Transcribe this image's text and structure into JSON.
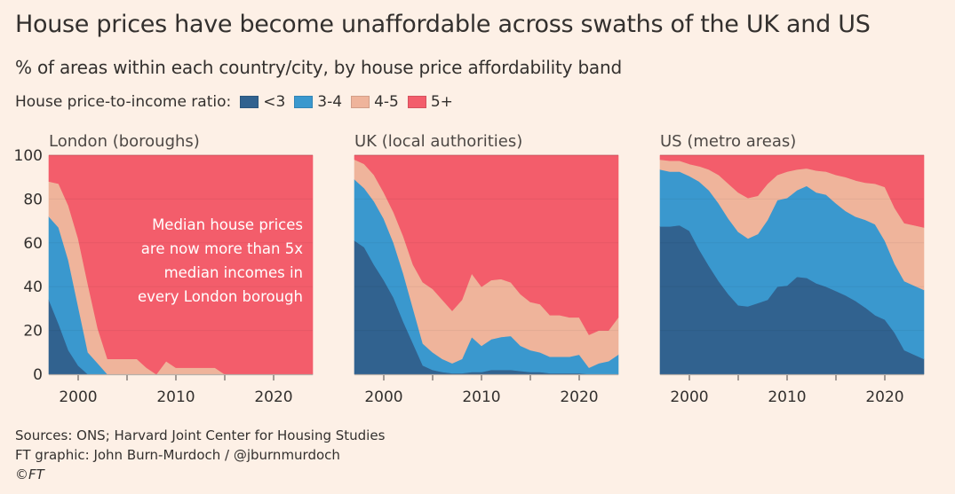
{
  "title": "House prices have become unaffordable across swaths of the UK and US",
  "subtitle": "% of areas within each country/city, by house price affordability band",
  "legend": {
    "label": "House price-to-income ratio:",
    "items": [
      {
        "label": "<3",
        "color": "#31628F"
      },
      {
        "label": "3-4",
        "color": "#3A98CE"
      },
      {
        "label": "4-5",
        "color": "#EFB49B"
      },
      {
        "label": "5+",
        "color": "#F35D6B"
      }
    ]
  },
  "footer": {
    "sources": "Sources: ONS; Harvard Joint Center for Housing Studies",
    "credit": "FT graphic: John Burn-Murdoch / @jburnmurdoch",
    "copyright": "©FT"
  },
  "chart_data": [
    {
      "type": "area",
      "stacked": true,
      "title": "London (boroughs)",
      "xlabel": "",
      "ylabel": "",
      "xlim": [
        1997,
        2024
      ],
      "ylim": [
        0,
        100
      ],
      "yticks": [
        0,
        20,
        40,
        60,
        80,
        100
      ],
      "xticks": [
        2000,
        2005,
        2010,
        2015,
        2020
      ],
      "xtick_labels": [
        "2000",
        "2010",
        "2020"
      ],
      "annotation": [
        "Median house prices",
        "are now more than 5x",
        "median incomes in",
        "every London borough"
      ],
      "x": [
        1997,
        1998,
        1999,
        2000,
        2001,
        2002,
        2003,
        2004,
        2005,
        2006,
        2007,
        2008,
        2009,
        2010,
        2011,
        2012,
        2013,
        2014,
        2015,
        2016,
        2017,
        2018,
        2019,
        2020,
        2021,
        2022,
        2023,
        2024
      ],
      "series": [
        {
          "name": "<3",
          "values": [
            34,
            23,
            11,
            4,
            0,
            0,
            0,
            0,
            0,
            0,
            0,
            0,
            0,
            0,
            0,
            0,
            0,
            0,
            0,
            0,
            0,
            0,
            0,
            0,
            0,
            0,
            0,
            0
          ]
        },
        {
          "name": "3-4",
          "values": [
            38,
            44,
            41,
            27,
            10,
            5,
            0,
            0,
            0,
            0,
            0,
            0,
            0,
            0,
            0,
            0,
            0,
            0,
            0,
            0,
            0,
            0,
            0,
            0,
            0,
            0,
            0,
            0
          ]
        },
        {
          "name": "4-5",
          "values": [
            16,
            20,
            25,
            31,
            31,
            16,
            7,
            7,
            7,
            7,
            3,
            0,
            6,
            3,
            3,
            3,
            3,
            3,
            0,
            0,
            0,
            0,
            0,
            0,
            0,
            0,
            0,
            0
          ]
        },
        {
          "name": "5+",
          "values": [
            12,
            13,
            23,
            38,
            59,
            79,
            93,
            93,
            93,
            93,
            97,
            100,
            94,
            97,
            97,
            97,
            97,
            97,
            100,
            100,
            100,
            100,
            100,
            100,
            100,
            100,
            100,
            100
          ]
        }
      ]
    },
    {
      "type": "area",
      "stacked": true,
      "title": "UK (local authorities)",
      "xlabel": "",
      "ylabel": "",
      "xlim": [
        1997,
        2024
      ],
      "ylim": [
        0,
        100
      ],
      "yticks": [
        0,
        20,
        40,
        60,
        80,
        100
      ],
      "xticks": [
        2000,
        2005,
        2010,
        2015,
        2020
      ],
      "xtick_labels": [
        "2000",
        "2010",
        "2020"
      ],
      "x": [
        1997,
        1998,
        1999,
        2000,
        2001,
        2002,
        2003,
        2004,
        2005,
        2006,
        2007,
        2008,
        2009,
        2010,
        2011,
        2012,
        2013,
        2014,
        2015,
        2016,
        2017,
        2018,
        2019,
        2020,
        2021,
        2022,
        2023,
        2024
      ],
      "series": [
        {
          "name": "<3",
          "values": [
            61,
            58,
            50,
            43,
            35,
            24,
            14,
            4,
            2,
            1,
            0.5,
            0.5,
            1,
            1,
            2,
            2,
            2,
            1.5,
            1,
            1,
            0.5,
            0.5,
            0.5,
            0.5,
            0,
            0,
            0,
            0
          ]
        },
        {
          "name": "3-4",
          "values": [
            28,
            27,
            29,
            28,
            25,
            22,
            16,
            10,
            8,
            6,
            4.5,
            6.5,
            16,
            12,
            14,
            15,
            15.5,
            11.5,
            10,
            9,
            7.5,
            7.5,
            7.5,
            8.5,
            3,
            5,
            6,
            9
          ]
        },
        {
          "name": "4-5",
          "values": [
            9,
            11,
            12,
            12,
            14,
            17,
            20,
            28,
            29,
            27,
            24,
            27,
            29,
            27,
            27,
            26.5,
            24.5,
            23.5,
            22,
            22,
            19,
            19,
            18,
            17,
            15,
            15,
            14,
            17
          ]
        },
        {
          "name": "5+",
          "values": [
            2,
            4,
            9,
            17,
            26,
            37,
            50,
            58,
            61,
            66,
            71,
            66,
            54,
            60,
            57,
            56.5,
            58,
            63.5,
            67,
            68,
            73,
            73,
            74,
            74,
            82,
            80,
            80,
            74
          ]
        }
      ]
    },
    {
      "type": "area",
      "stacked": true,
      "title": "US (metro areas)",
      "xlabel": "",
      "ylabel": "",
      "xlim": [
        1997,
        2024
      ],
      "ylim": [
        0,
        100
      ],
      "yticks": [
        0,
        20,
        40,
        60,
        80,
        100
      ],
      "xticks": [
        2000,
        2005,
        2010,
        2015,
        2020
      ],
      "xtick_labels": [
        "2000",
        "2010",
        "2020"
      ],
      "x": [
        1997,
        1998,
        1999,
        2000,
        2001,
        2002,
        2003,
        2004,
        2005,
        2006,
        2007,
        2008,
        2009,
        2010,
        2011,
        2012,
        2013,
        2014,
        2015,
        2016,
        2017,
        2018,
        2019,
        2020,
        2021,
        2022,
        2023,
        2024
      ],
      "series": [
        {
          "name": "<3",
          "values": [
            67.5,
            67.5,
            68,
            65.5,
            57,
            49.5,
            42.5,
            36.5,
            31.5,
            31,
            32.5,
            34,
            40,
            40.5,
            44.5,
            44,
            41.5,
            40,
            38,
            36,
            33.5,
            30.5,
            27,
            25,
            19,
            11,
            9,
            7
          ]
        },
        {
          "name": "3-4",
          "values": [
            26,
            25,
            24.5,
            25,
            31,
            34.5,
            35.5,
            34.5,
            33.5,
            31,
            31.5,
            36.5,
            39.5,
            40,
            39.5,
            42,
            41.5,
            42,
            40,
            38.5,
            38.5,
            40,
            41.5,
            36,
            31.5,
            31.5,
            31.5,
            31.5
          ]
        },
        {
          "name": "4-5",
          "values": [
            4.5,
            5,
            5,
            5.5,
            7,
            9.5,
            13,
            16,
            18,
            18.5,
            17.5,
            16.5,
            11.5,
            12,
            9.5,
            8,
            10,
            10.5,
            13,
            15.5,
            16.5,
            17,
            18.5,
            24.5,
            25.5,
            26.5,
            27.5,
            28.5
          ]
        },
        {
          "name": "5+",
          "values": [
            2,
            2.5,
            2.5,
            4,
            5,
            6.5,
            9,
            13,
            17,
            19.5,
            18.5,
            13,
            9,
            7.5,
            6.5,
            6,
            7,
            7.5,
            9,
            10,
            11.5,
            12.5,
            13,
            14.5,
            24,
            31,
            32,
            33
          ]
        }
      ]
    }
  ]
}
